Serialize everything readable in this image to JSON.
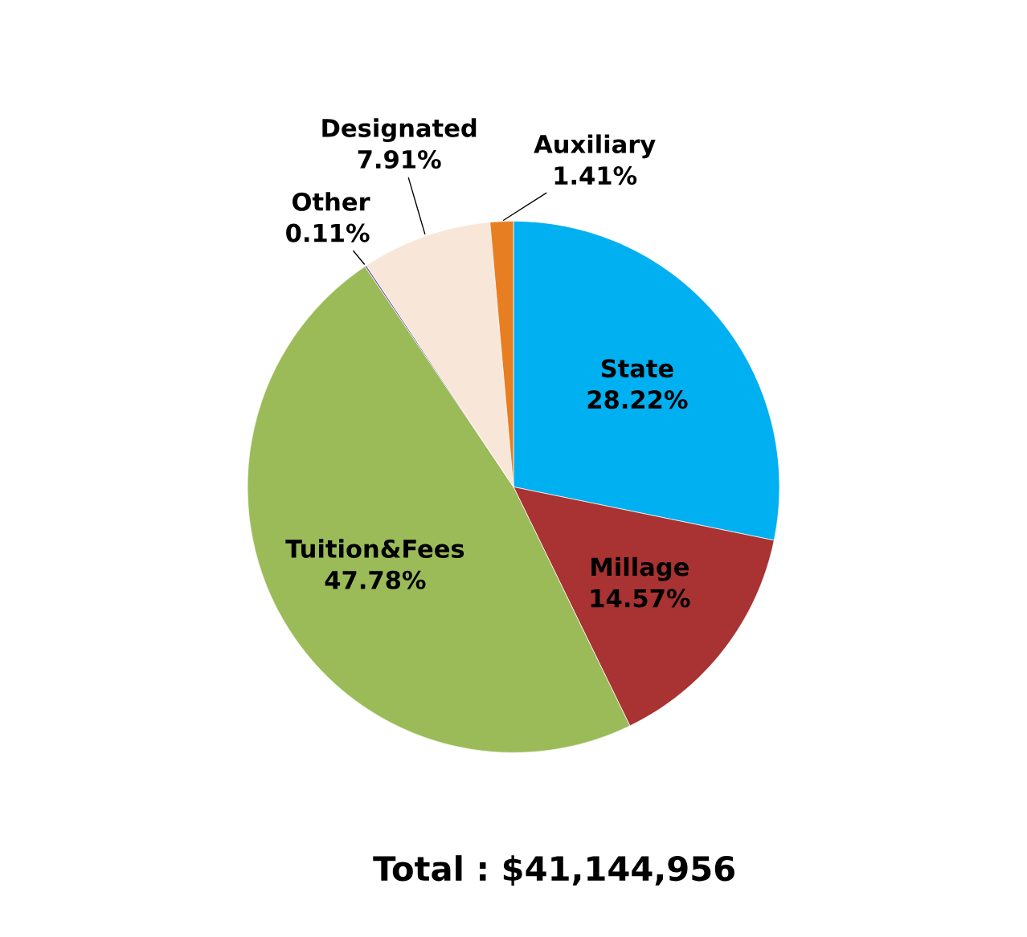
{
  "chart_data": {
    "type": "pie",
    "categories": [
      "State",
      "Millage",
      "Tuition&Fees",
      "Other",
      "Designated",
      "Auxiliary"
    ],
    "values": [
      28.22,
      14.57,
      47.78,
      0.11,
      7.91,
      1.41
    ],
    "colors": [
      "#00b0f0",
      "#a93232",
      "#9bbb59",
      "#8064a2",
      "#f8e6d8",
      "#e87e22"
    ],
    "value_labels": [
      "28.22%",
      "14.57%",
      "47.78%",
      "0.11%",
      "7.91%",
      "1.41%"
    ],
    "annotations": [
      "Total : $41,144,956"
    ]
  }
}
